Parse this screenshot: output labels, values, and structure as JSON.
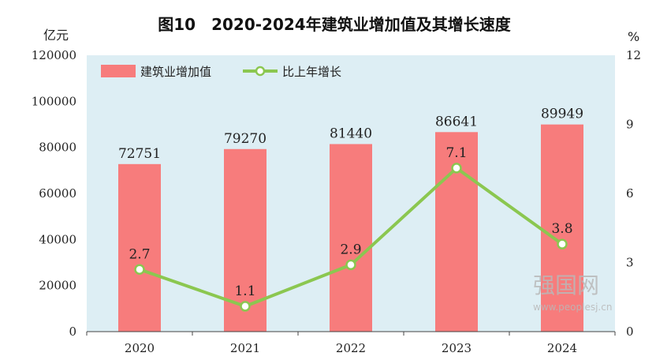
{
  "chart_data": {
    "type": "bar",
    "title": "图10　2020-2024年建筑业增加值及其增长速度",
    "left_unit": "亿元",
    "right_unit": "%",
    "categories": [
      "2020",
      "2021",
      "2022",
      "2023",
      "2024"
    ],
    "series": [
      {
        "name": "建筑业增加值",
        "type": "bar",
        "axis": "left",
        "values": [
          72751,
          79270,
          81440,
          86641,
          89949
        ],
        "labels": [
          "72751",
          "79270",
          "81440",
          "86641",
          "89949"
        ]
      },
      {
        "name": "比上年增长",
        "type": "line",
        "axis": "right",
        "values": [
          2.7,
          1.1,
          2.9,
          7.1,
          3.8
        ],
        "labels": [
          "2.7",
          "1.1",
          "2.9",
          "7.1",
          "3.8"
        ]
      }
    ],
    "ylim_left": [
      0,
      120000
    ],
    "yticks_left": [
      "0",
      "20000",
      "40000",
      "60000",
      "80000",
      "100000",
      "120000"
    ],
    "ylim_right": [
      0,
      12
    ],
    "yticks_right": [
      "0",
      "3",
      "6",
      "9",
      "12"
    ],
    "legend_position": "top-left",
    "grid": false,
    "plot_background": "#ddeef4",
    "bar_color": "#f77c7c",
    "line_color": "#8bc750"
  },
  "watermark": {
    "brand": "强国网",
    "url": "www.peoplesj.cn"
  }
}
